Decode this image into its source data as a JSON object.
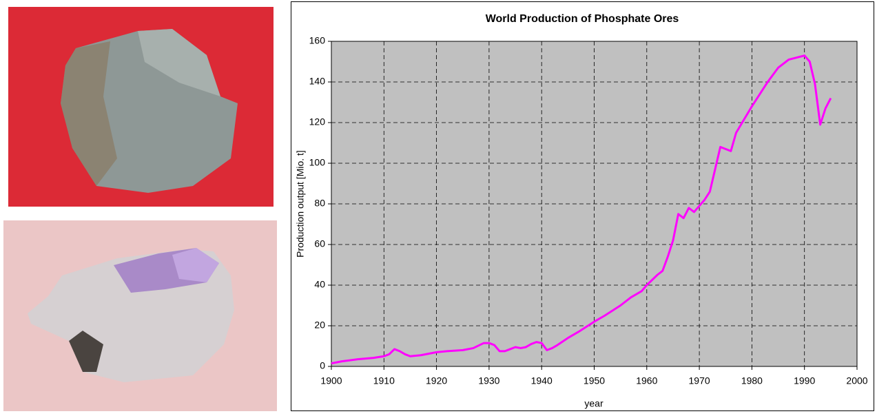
{
  "chart_data": {
    "type": "line",
    "title": "World Production of Phosphate Ores",
    "x_label": "year",
    "y_label": "Production output [Mio. t]",
    "x": [
      1900,
      1902,
      1905,
      1908,
      1910,
      1911,
      1912,
      1913,
      1914,
      1915,
      1917,
      1920,
      1922,
      1925,
      1927,
      1929,
      1930,
      1931,
      1932,
      1933,
      1934,
      1935,
      1936,
      1937,
      1938,
      1939,
      1940,
      1941,
      1942,
      1943,
      1945,
      1947,
      1950,
      1952,
      1955,
      1957,
      1959,
      1960,
      1962,
      1963,
      1964,
      1965,
      1966,
      1967,
      1968,
      1969,
      1970,
      1971,
      1972,
      1973,
      1974,
      1975,
      1976,
      1977,
      1980,
      1983,
      1985,
      1987,
      1990,
      1991,
      1992,
      1993,
      1994,
      1995
    ],
    "values": [
      1.5,
      2.5,
      3.5,
      4.2,
      5,
      6,
      8.5,
      7.5,
      6,
      5,
      5.5,
      7,
      7.5,
      8,
      9,
      11.5,
      11.5,
      10.5,
      7.5,
      7.5,
      8.5,
      9.5,
      9,
      9.5,
      11,
      12,
      11.5,
      8,
      9,
      10.5,
      14,
      17,
      22,
      25,
      30,
      34,
      37,
      40,
      45,
      47,
      54,
      62,
      75,
      73,
      78,
      76,
      79,
      82,
      86,
      97,
      108,
      107,
      106,
      115,
      128,
      140,
      147,
      151,
      153,
      150,
      139,
      119,
      127,
      132
    ],
    "color": "#ff00ff",
    "xlim": [
      1900,
      2000
    ],
    "xticks": [
      1900,
      1910,
      1920,
      1930,
      1940,
      1950,
      1960,
      1970,
      1980,
      1990,
      2000
    ],
    "ylim": [
      0,
      160
    ],
    "yticks": [
      0,
      20,
      40,
      60,
      80,
      100,
      120,
      140,
      160
    ],
    "grid": true
  }
}
